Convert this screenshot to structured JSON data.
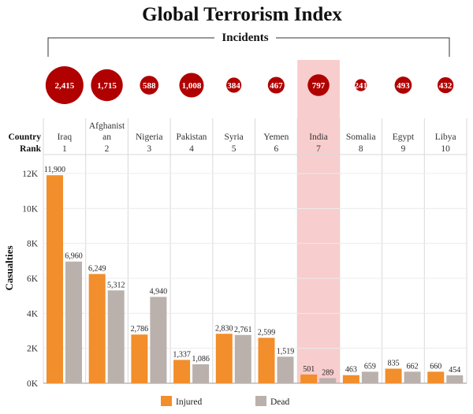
{
  "title": "Global Terrorism Index",
  "incidents_label": "Incidents",
  "header": {
    "line1": "Country",
    "line2": "Rank"
  },
  "colors": {
    "injured": "#f28e2b",
    "dead": "#bab0ac",
    "bubble": "#b00000",
    "highlight": "#f7c4c4"
  },
  "highlight_country": "India",
  "chart_data": {
    "type": "bar",
    "title": "Global Terrorism Index",
    "ylabel": "Casualties",
    "xlabel": "",
    "ylim": [
      0,
      12000
    ],
    "yticks": [
      0,
      2000,
      4000,
      6000,
      8000,
      10000,
      12000
    ],
    "ytick_labels": [
      "0K",
      "2K",
      "4K",
      "6K",
      "8K",
      "10K",
      "12K"
    ],
    "categories": [
      {
        "name": [
          "Iraq"
        ],
        "rank": "1",
        "incidents": 2415,
        "incidents_label": "2,415"
      },
      {
        "name": [
          "Afghanist",
          "an"
        ],
        "rank": "2",
        "incidents": 1715,
        "incidents_label": "1,715"
      },
      {
        "name": [
          "Nigeria"
        ],
        "rank": "3",
        "incidents": 588,
        "incidents_label": "588"
      },
      {
        "name": [
          "Pakistan"
        ],
        "rank": "4",
        "incidents": 1008,
        "incidents_label": "1,008"
      },
      {
        "name": [
          "Syria"
        ],
        "rank": "5",
        "incidents": 384,
        "incidents_label": "384"
      },
      {
        "name": [
          "Yemen"
        ],
        "rank": "6",
        "incidents": 467,
        "incidents_label": "467"
      },
      {
        "name": [
          "India"
        ],
        "rank": "7",
        "incidents": 797,
        "incidents_label": "797"
      },
      {
        "name": [
          "Somalia"
        ],
        "rank": "8",
        "incidents": 241,
        "incidents_label": "241"
      },
      {
        "name": [
          "Egypt"
        ],
        "rank": "9",
        "incidents": 493,
        "incidents_label": "493"
      },
      {
        "name": [
          "Libya"
        ],
        "rank": "10",
        "incidents": 432,
        "incidents_label": "432"
      }
    ],
    "series": [
      {
        "name": "Injured",
        "values": [
          11900,
          6249,
          2786,
          1337,
          2830,
          2599,
          501,
          463,
          835,
          660
        ],
        "labels": [
          "11,900",
          "6,249",
          "2,786",
          "1,337",
          "2,830",
          "2,599",
          "501",
          "463",
          "835",
          "660"
        ]
      },
      {
        "name": "Dead",
        "values": [
          6960,
          5312,
          4940,
          1086,
          2761,
          1519,
          289,
          659,
          662,
          454
        ],
        "labels": [
          "6,960",
          "5,312",
          "4,940",
          "1,086",
          "2,761",
          "1,519",
          "289",
          "659",
          "662",
          "454"
        ]
      }
    ],
    "legend": [
      "Injured",
      "Dead"
    ],
    "legend_position": "bottom",
    "grid": true
  }
}
